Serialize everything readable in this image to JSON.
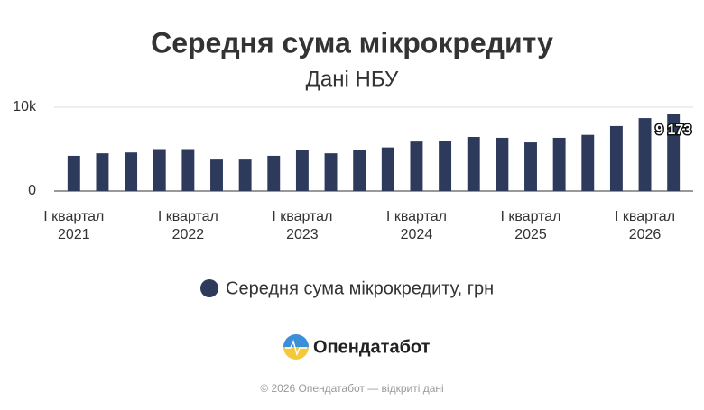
{
  "chart_data": {
    "type": "bar",
    "title": "Середня сума мікрокредиту",
    "subtitle": "Дані НБУ",
    "categories": [
      "І квартал 2021",
      null,
      null,
      null,
      "І квартал 2022",
      null,
      null,
      null,
      "І квартал 2023",
      null,
      null,
      null,
      "І квартал 2024",
      null,
      null,
      null,
      "І квартал 2025",
      null,
      null,
      null,
      "І квартал 2026",
      null
    ],
    "series": [
      {
        "name": "Середня сума мікрокредиту, грн",
        "color": "#2d3a5c",
        "values": [
          4200,
          4500,
          4600,
          5000,
          5000,
          3750,
          3750,
          4200,
          4900,
          4500,
          4900,
          5200,
          5900,
          6000,
          6450,
          6350,
          5800,
          6350,
          6700,
          7750,
          8700,
          9173
        ],
        "value_labels": [
          null,
          null,
          null,
          null,
          null,
          null,
          null,
          null,
          null,
          null,
          null,
          null,
          null,
          null,
          null,
          null,
          null,
          null,
          null,
          null,
          null,
          "9 173"
        ]
      }
    ],
    "ylim": [
      0,
      10000
    ],
    "yticks": [
      0,
      {
        "value": 10000,
        "label": "10k"
      }
    ],
    "grid": true
  },
  "branding": {
    "logo": "Опендатабот",
    "footer": "© 2026 Опендатабот — відкриті дані"
  }
}
